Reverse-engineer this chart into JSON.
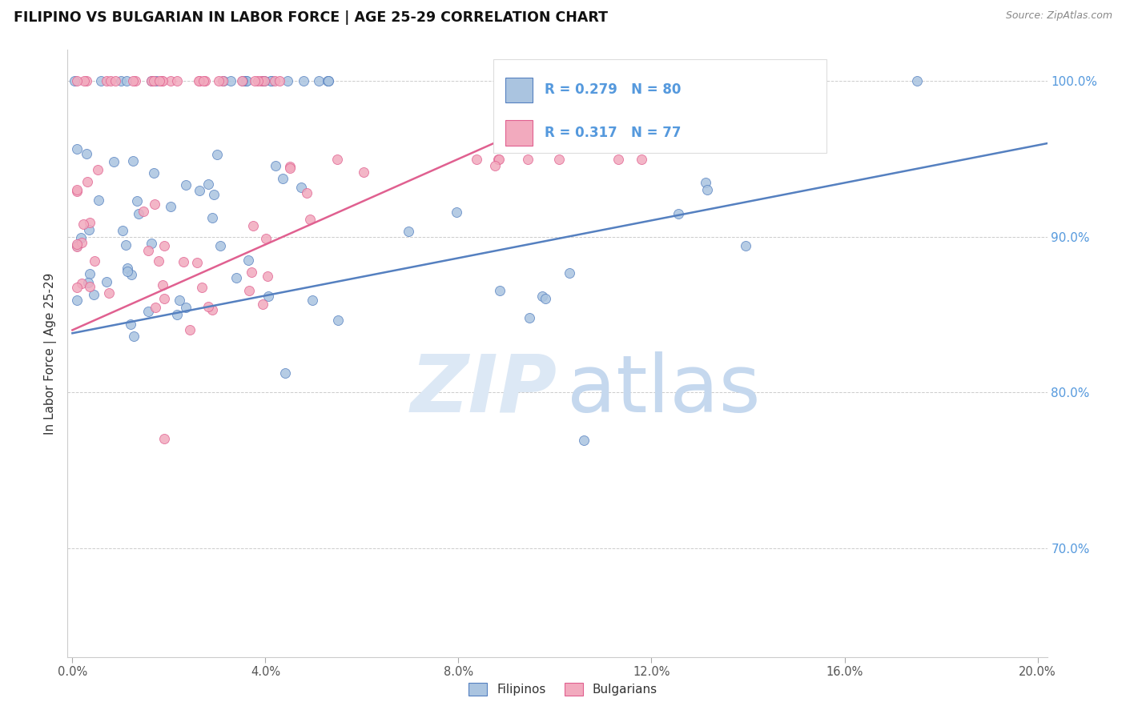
{
  "title": "FILIPINO VS BULGARIAN IN LABOR FORCE | AGE 25-29 CORRELATION CHART",
  "source": "Source: ZipAtlas.com",
  "ylabel": "In Labor Force | Age 25-29",
  "legend_r1": "0.279",
  "legend_n1": "80",
  "legend_r2": "0.317",
  "legend_n2": "77",
  "filipino_fill": "#aac4e0",
  "bulgarian_fill": "#f2aabe",
  "filipino_edge": "#5580c0",
  "bulgarian_edge": "#e06090",
  "filipino_line": "#5580c0",
  "bulgarian_line": "#e06090",
  "filipino_label": "Filipinos",
  "bulgarian_label": "Bulgarians",
  "x_min": -0.001,
  "x_max": 0.202,
  "y_min": 0.63,
  "y_max": 1.02,
  "blue_line": [
    0.0,
    0.202,
    0.838,
    0.96
  ],
  "pink_line": [
    0.0,
    0.12,
    0.84,
    1.005
  ],
  "x_ticks": [
    0.0,
    0.04,
    0.08,
    0.12,
    0.16,
    0.2
  ],
  "x_tick_labels": [
    "0.0%",
    "4.0%",
    "8.0%",
    "12.0%",
    "16.0%",
    "20.0%"
  ],
  "y_ticks": [
    0.7,
    0.8,
    0.9,
    1.0
  ],
  "y_tick_labels": [
    "70.0%",
    "80.0%",
    "90.0%",
    "100.0%"
  ],
  "right_axis_color": "#5599dd",
  "grid_color": "#cccccc",
  "title_color": "#111111",
  "source_color": "#888888",
  "ylabel_color": "#333333"
}
